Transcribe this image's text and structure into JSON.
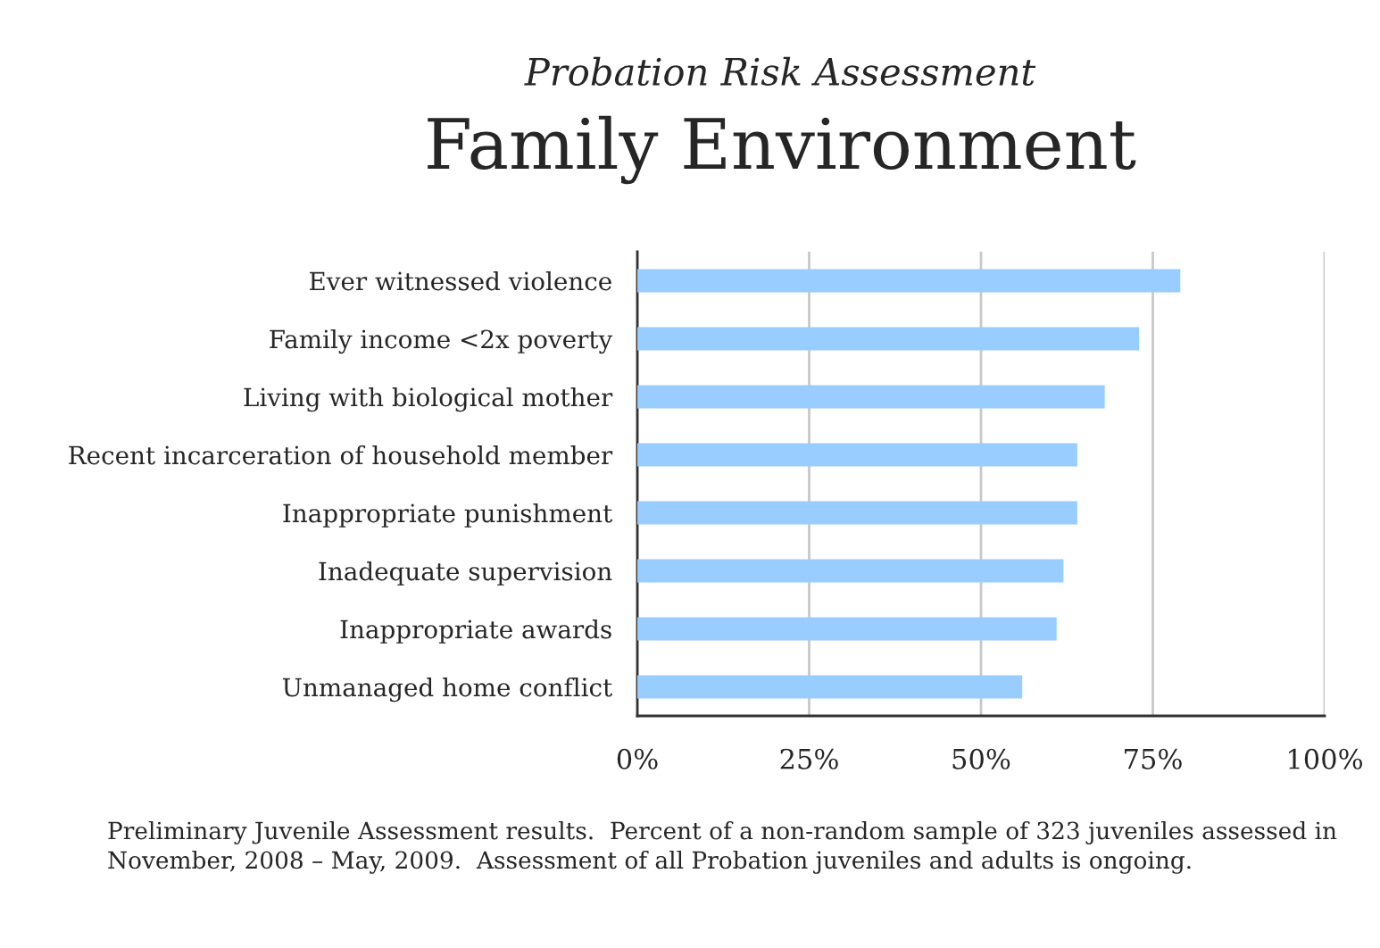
{
  "chart_data": {
    "type": "bar",
    "orientation": "horizontal",
    "subtitle": "Probation Risk Assessment",
    "title": "Family Environment",
    "categories": [
      "Ever witnessed violence",
      "Family income <2x poverty",
      "Living with biological mother",
      "Recent incarceration of household member",
      "Inappropriate punishment",
      "Inadequate supervision",
      "Inappropriate awards",
      "Unmanaged home conflict"
    ],
    "values": [
      79,
      73,
      68,
      64,
      64,
      62,
      61,
      56
    ],
    "color": "#99ccff",
    "xlim": [
      0,
      100
    ],
    "xticks": [
      {
        "value": 0,
        "label": "0%"
      },
      {
        "value": 25,
        "label": "25%"
      },
      {
        "value": 50,
        "label": "50%"
      },
      {
        "value": 75,
        "label": "75%"
      },
      {
        "value": 100,
        "label": "100%"
      }
    ],
    "grid": "x",
    "annotations": [
      "Preliminary Juvenile Assessment results.  Percent of a non-random sample of 323 juveniles assessed in November, 2008 – May, 2009.  Assessment of all Probation juveniles and adults is ongoing."
    ]
  }
}
